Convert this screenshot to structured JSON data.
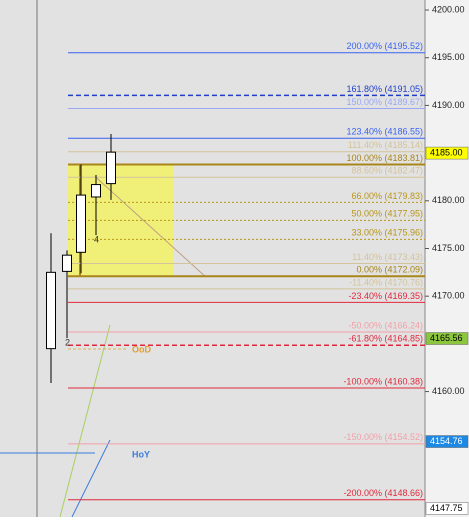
{
  "chart_data": {
    "type": "candlestick",
    "ylim": [
      4146.85,
      4201.05
    ],
    "yticks": [
      {
        "value": 4200,
        "label": "4200.00"
      },
      {
        "value": 4195,
        "label": "4195.00"
      },
      {
        "value": 4190,
        "label": "4190.00"
      },
      {
        "value": 4180,
        "label": "4180.00"
      },
      {
        "value": 4175,
        "label": "4175.00"
      },
      {
        "value": 4170,
        "label": "4170.00"
      },
      {
        "value": 4160,
        "label": "4160.00"
      }
    ],
    "candles": [
      {
        "open": 4164.5,
        "high": 4176.6,
        "low": 4160.9,
        "close": 4172.5
      },
      {
        "open": 4172.6,
        "high": 4174.8,
        "low": 4165.6,
        "close": 4174.3
      },
      {
        "open": 4174.6,
        "high": 4183.8,
        "low": 4172.4,
        "close": 4180.6
      },
      {
        "open": 4180.4,
        "high": 4182.7,
        "low": 4176.4,
        "close": 4181.7
      },
      {
        "open": 4181.8,
        "high": 4187.0,
        "low": 4180.1,
        "close": 4185.1
      }
    ],
    "candle_labels": [
      null,
      "2",
      null,
      "4",
      null
    ],
    "levels": [
      {
        "label": "200.00% (4195.52)",
        "value": 4195.52,
        "color": "#3a63f0",
        "style": "solid"
      },
      {
        "label": "161.80% (4191.05)",
        "value": 4191.05,
        "color": "#1f3fc8",
        "style": "dashed"
      },
      {
        "label": "150.00% (4189.67)",
        "value": 4189.67,
        "color": "#9aa8f4",
        "style": "solid"
      },
      {
        "label": "123.40% (4186.55)",
        "value": 4186.55,
        "color": "#3a63f0",
        "style": "solid"
      },
      {
        "label": "111.40% (4185.14)",
        "value": 4185.14,
        "color": "#d3c39a",
        "style": "solid"
      },
      {
        "label": "100.00% (4183.81)",
        "value": 4183.81,
        "color": "#a8861a",
        "style": "thick"
      },
      {
        "label": "88.60% (4182.47)",
        "value": 4182.47,
        "color": "#d3c39a",
        "style": "solid"
      },
      {
        "label": "66.00% (4179.83)",
        "value": 4179.83,
        "color": "#b8961a",
        "style": "dotted"
      },
      {
        "label": "50.00% (4177.95)",
        "value": 4177.95,
        "color": "#b8961a",
        "style": "dotted"
      },
      {
        "label": "33.00% (4175.96)",
        "value": 4175.96,
        "color": "#b8961a",
        "style": "dotted"
      },
      {
        "label": "11.40% (4173.43)",
        "value": 4173.43,
        "color": "#d3c39a",
        "style": "solid"
      },
      {
        "label": "0.00% (4172.09)",
        "value": 4172.09,
        "color": "#a8861a",
        "style": "thick"
      },
      {
        "label": "-11.40% (4170.76)",
        "value": 4170.76,
        "color": "#d3c39a",
        "style": "solid"
      },
      {
        "label": "-23.40% (4169.35)",
        "value": 4169.35,
        "color": "#e0283c",
        "style": "solid"
      },
      {
        "label": "-50.00% (4166.24)",
        "value": 4166.24,
        "color": "#f0a0a8",
        "style": "solid"
      },
      {
        "label": "-61.80% (4164.85)",
        "value": 4164.85,
        "color": "#e0283c",
        "style": "dashed"
      },
      {
        "label": "-100.00% (4160.38)",
        "value": 4160.38,
        "color": "#e0283c",
        "style": "solid"
      },
      {
        "label": "-150.00% (4154.52)",
        "value": 4154.52,
        "color": "#f0a0a8",
        "style": "solid"
      },
      {
        "label": "-200.00% (4148.66)",
        "value": 4148.66,
        "color": "#e0283c",
        "style": "solid"
      }
    ],
    "zone": {
      "top": 4183.81,
      "bottom": 4172.09,
      "color": "#f2f266"
    },
    "price_tags": [
      {
        "value": 4185.0,
        "label": "4185.00",
        "bg": "#ffff00",
        "fg": "#000000"
      },
      {
        "value": 4165.56,
        "label": "4165.56",
        "bg": "#8cc63f",
        "fg": "#000000"
      },
      {
        "value": 4154.76,
        "label": "4154.76",
        "bg": "#1e88e5",
        "fg": "#ffffff"
      },
      {
        "value": 4147.75,
        "label": "4147.75",
        "bg": "#ffffff",
        "fg": "#000000"
      }
    ],
    "annotations": [
      "OoD",
      "HoY"
    ]
  }
}
